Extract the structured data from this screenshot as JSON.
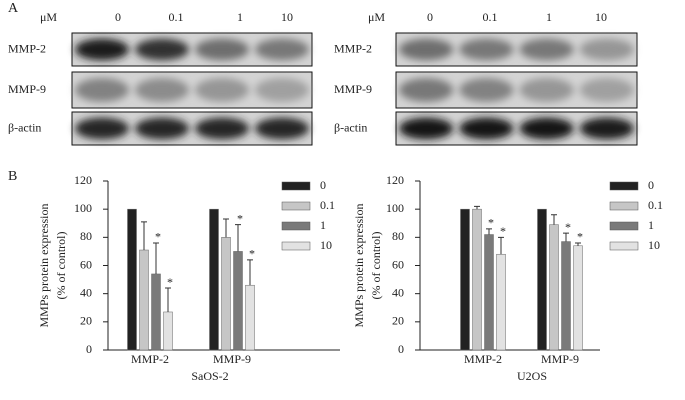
{
  "panel_a": {
    "label": "A",
    "blots": [
      {
        "unit": "μM",
        "doses": [
          "0",
          "0.1",
          "1",
          "10"
        ],
        "rows": [
          "MMP-2",
          "MMP-9",
          "β-actin"
        ]
      },
      {
        "unit": "μM",
        "doses": [
          "0",
          "0.1",
          "1",
          "10"
        ],
        "rows": [
          "MMP-2",
          "MMP-9",
          "β-actin"
        ]
      }
    ]
  },
  "panel_b": {
    "label": "B"
  },
  "chart_data": [
    {
      "type": "bar",
      "x_label": "SaOS-2",
      "y_label": [
        "MMPs protein expression",
        "(% of control)"
      ],
      "categories": [
        "MMP-2",
        "MMP-9"
      ],
      "series": [
        {
          "name": "0",
          "color": "#222222",
          "values": [
            100,
            100
          ]
        },
        {
          "name": "0.1",
          "color": "#c6c6c6",
          "values": [
            71,
            80
          ],
          "errors": [
            20,
            13
          ]
        },
        {
          "name": "1",
          "color": "#7a7a7a",
          "values": [
            54,
            70
          ],
          "errors": [
            22,
            19
          ],
          "annotations": [
            "*",
            "*"
          ]
        },
        {
          "name": "10",
          "color": "#e2e2e2",
          "values": [
            27,
            46
          ],
          "errors": [
            17,
            18
          ],
          "annotations": [
            "*",
            "*"
          ]
        }
      ],
      "ylim": [
        0,
        120
      ],
      "yticks": [
        0,
        20,
        40,
        60,
        80,
        100,
        120
      ]
    },
    {
      "type": "bar",
      "x_label": "U2OS",
      "y_label": [
        "MMPs protein expression",
        "(% of control)"
      ],
      "categories": [
        "MMP-2",
        "MMP-9"
      ],
      "series": [
        {
          "name": "0",
          "color": "#222222",
          "values": [
            100,
            100
          ]
        },
        {
          "name": "0.1",
          "color": "#c6c6c6",
          "values": [
            100,
            89
          ],
          "errors": [
            2,
            7
          ]
        },
        {
          "name": "1",
          "color": "#7a7a7a",
          "values": [
            82,
            77
          ],
          "errors": [
            4,
            6
          ],
          "annotations": [
            "*",
            "*"
          ]
        },
        {
          "name": "10",
          "color": "#e2e2e2",
          "values": [
            68,
            74
          ],
          "errors": [
            12,
            2
          ],
          "annotations": [
            "*",
            "*"
          ]
        }
      ],
      "ylim": [
        0,
        120
      ],
      "yticks": [
        0,
        20,
        40,
        60,
        80,
        100,
        120
      ]
    }
  ]
}
